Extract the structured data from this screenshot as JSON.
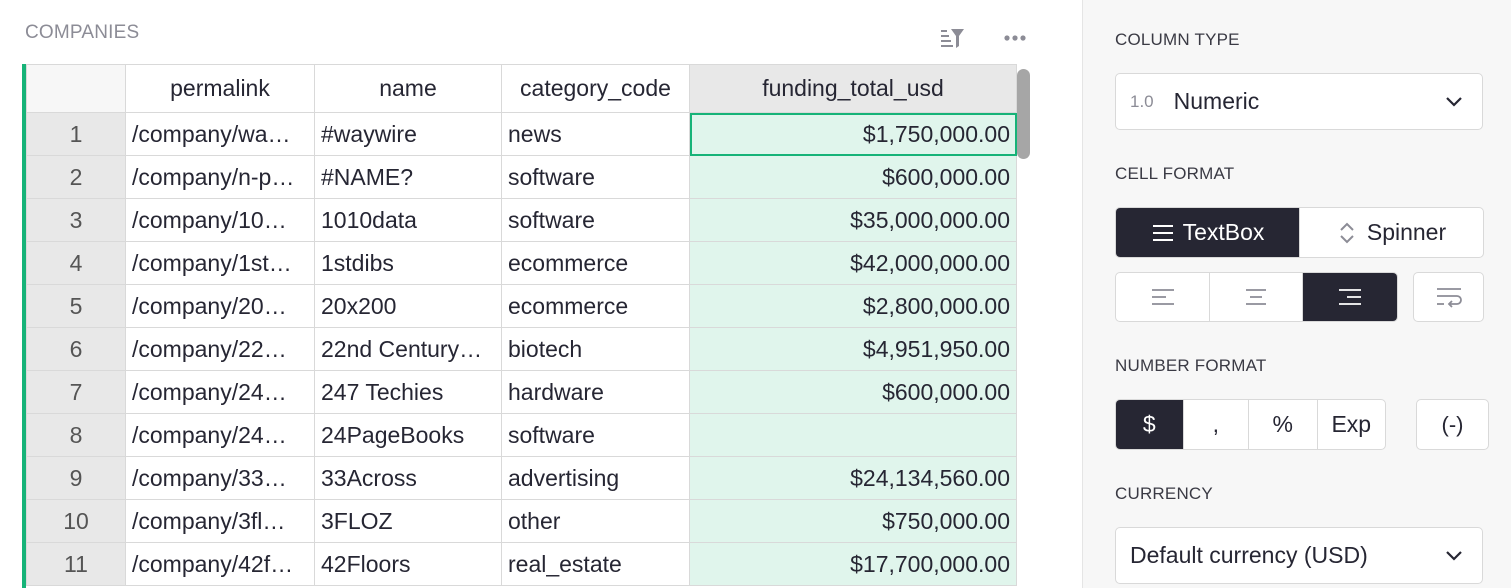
{
  "widget": {
    "title": "COMPANIES",
    "icons": {
      "sort_filter": "sort-filter-icon",
      "more": "more-options-icon"
    }
  },
  "table": {
    "columns": [
      "",
      "permalink",
      "name",
      "category_code",
      "funding_total_usd"
    ],
    "selected_column": "funding_total_usd",
    "active_cell": {
      "row": 1,
      "column": "funding_total_usd"
    },
    "rows": [
      {
        "n": "1",
        "permalink": "/company/wa…",
        "name": "#waywire",
        "category_code": "news",
        "funding_total_usd": "$1,750,000.00"
      },
      {
        "n": "2",
        "permalink": "/company/n-p…",
        "name": "#NAME?",
        "category_code": "software",
        "funding_total_usd": "$600,000.00"
      },
      {
        "n": "3",
        "permalink": "/company/10…",
        "name": "1010data",
        "category_code": "software",
        "funding_total_usd": "$35,000,000.00"
      },
      {
        "n": "4",
        "permalink": "/company/1st…",
        "name": "1stdibs",
        "category_code": "ecommerce",
        "funding_total_usd": "$42,000,000.00"
      },
      {
        "n": "5",
        "permalink": "/company/20…",
        "name": "20x200",
        "category_code": "ecommerce",
        "funding_total_usd": "$2,800,000.00"
      },
      {
        "n": "6",
        "permalink": "/company/22…",
        "name": "22nd Century…",
        "category_code": "biotech",
        "funding_total_usd": "$4,951,950.00"
      },
      {
        "n": "7",
        "permalink": "/company/24…",
        "name": "247 Techies",
        "category_code": "hardware",
        "funding_total_usd": "$600,000.00"
      },
      {
        "n": "8",
        "permalink": "/company/24…",
        "name": "24PageBooks",
        "category_code": "software",
        "funding_total_usd": ""
      },
      {
        "n": "9",
        "permalink": "/company/33…",
        "name": "33Across",
        "category_code": "advertising",
        "funding_total_usd": "$24,134,560.00"
      },
      {
        "n": "10",
        "permalink": "/company/3fl…",
        "name": "3FLOZ",
        "category_code": "other",
        "funding_total_usd": "$750,000.00"
      },
      {
        "n": "11",
        "permalink": "/company/42f…",
        "name": "42Floors",
        "category_code": "real_estate",
        "funding_total_usd": "$17,700,000.00"
      }
    ]
  },
  "panel": {
    "column_type": {
      "label": "COLUMN TYPE",
      "badge": "1.0",
      "value": "Numeric"
    },
    "cell_format": {
      "label": "CELL FORMAT",
      "widgets": [
        "TextBox",
        "Spinner"
      ],
      "selected_widget": "TextBox",
      "alignments": [
        "align-left-icon",
        "align-center-icon",
        "align-right-icon"
      ],
      "selected_alignment": "align-right-icon",
      "wrap_icon": "wrap-text-icon"
    },
    "number_format": {
      "label": "NUMBER FORMAT",
      "options": [
        "$",
        ",",
        "%",
        "Exp"
      ],
      "selected": "$",
      "parens": "(-)"
    },
    "currency": {
      "label": "CURRENCY",
      "value": "Default currency (USD)"
    }
  },
  "colors": {
    "accent": "#16b378",
    "dark_button": "#262633",
    "selected_cells": "#e0f5ec"
  }
}
